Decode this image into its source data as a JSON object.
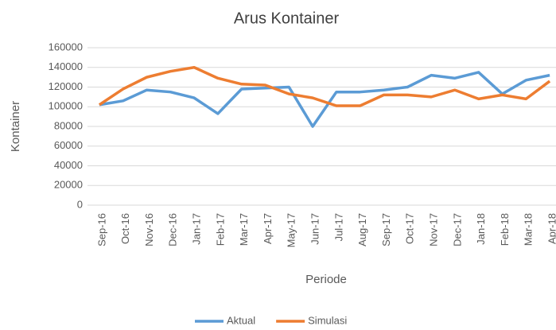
{
  "chart_data": {
    "type": "line",
    "title": "Arus Kontainer",
    "x_label": "Periode",
    "y_label": "Kontainer",
    "categories": [
      "Sep-16",
      "Oct-16",
      "Nov-16",
      "Dec-16",
      "Jan-17",
      "Feb-17",
      "Mar-17",
      "Apr-17",
      "May-17",
      "Jun-17",
      "Jul-17",
      "Aug-17",
      "Sep-17",
      "Oct-17",
      "Nov-17",
      "Dec-17",
      "Jan-18",
      "Feb-18",
      "Mar-18",
      "Apr-18"
    ],
    "series": [
      {
        "name": "Aktual",
        "color": "#5b9bd5",
        "values": [
          102000,
          106000,
          117000,
          115000,
          109000,
          93000,
          118000,
          119000,
          120000,
          80000,
          115000,
          115000,
          117000,
          120000,
          132000,
          129000,
          135000,
          113000,
          127000,
          132000
        ]
      },
      {
        "name": "Simulasi",
        "color": "#ed7d31",
        "values": [
          102000,
          118000,
          130000,
          136000,
          140000,
          129000,
          123000,
          122000,
          113000,
          109000,
          101000,
          101000,
          112000,
          112000,
          110000,
          117000,
          108000,
          112000,
          108000,
          126000
        ]
      }
    ],
    "ylim": [
      0,
      160000
    ],
    "yticks": [
      0,
      20000,
      40000,
      60000,
      80000,
      100000,
      120000,
      140000,
      160000
    ],
    "grid": true,
    "legend": "bottom"
  }
}
